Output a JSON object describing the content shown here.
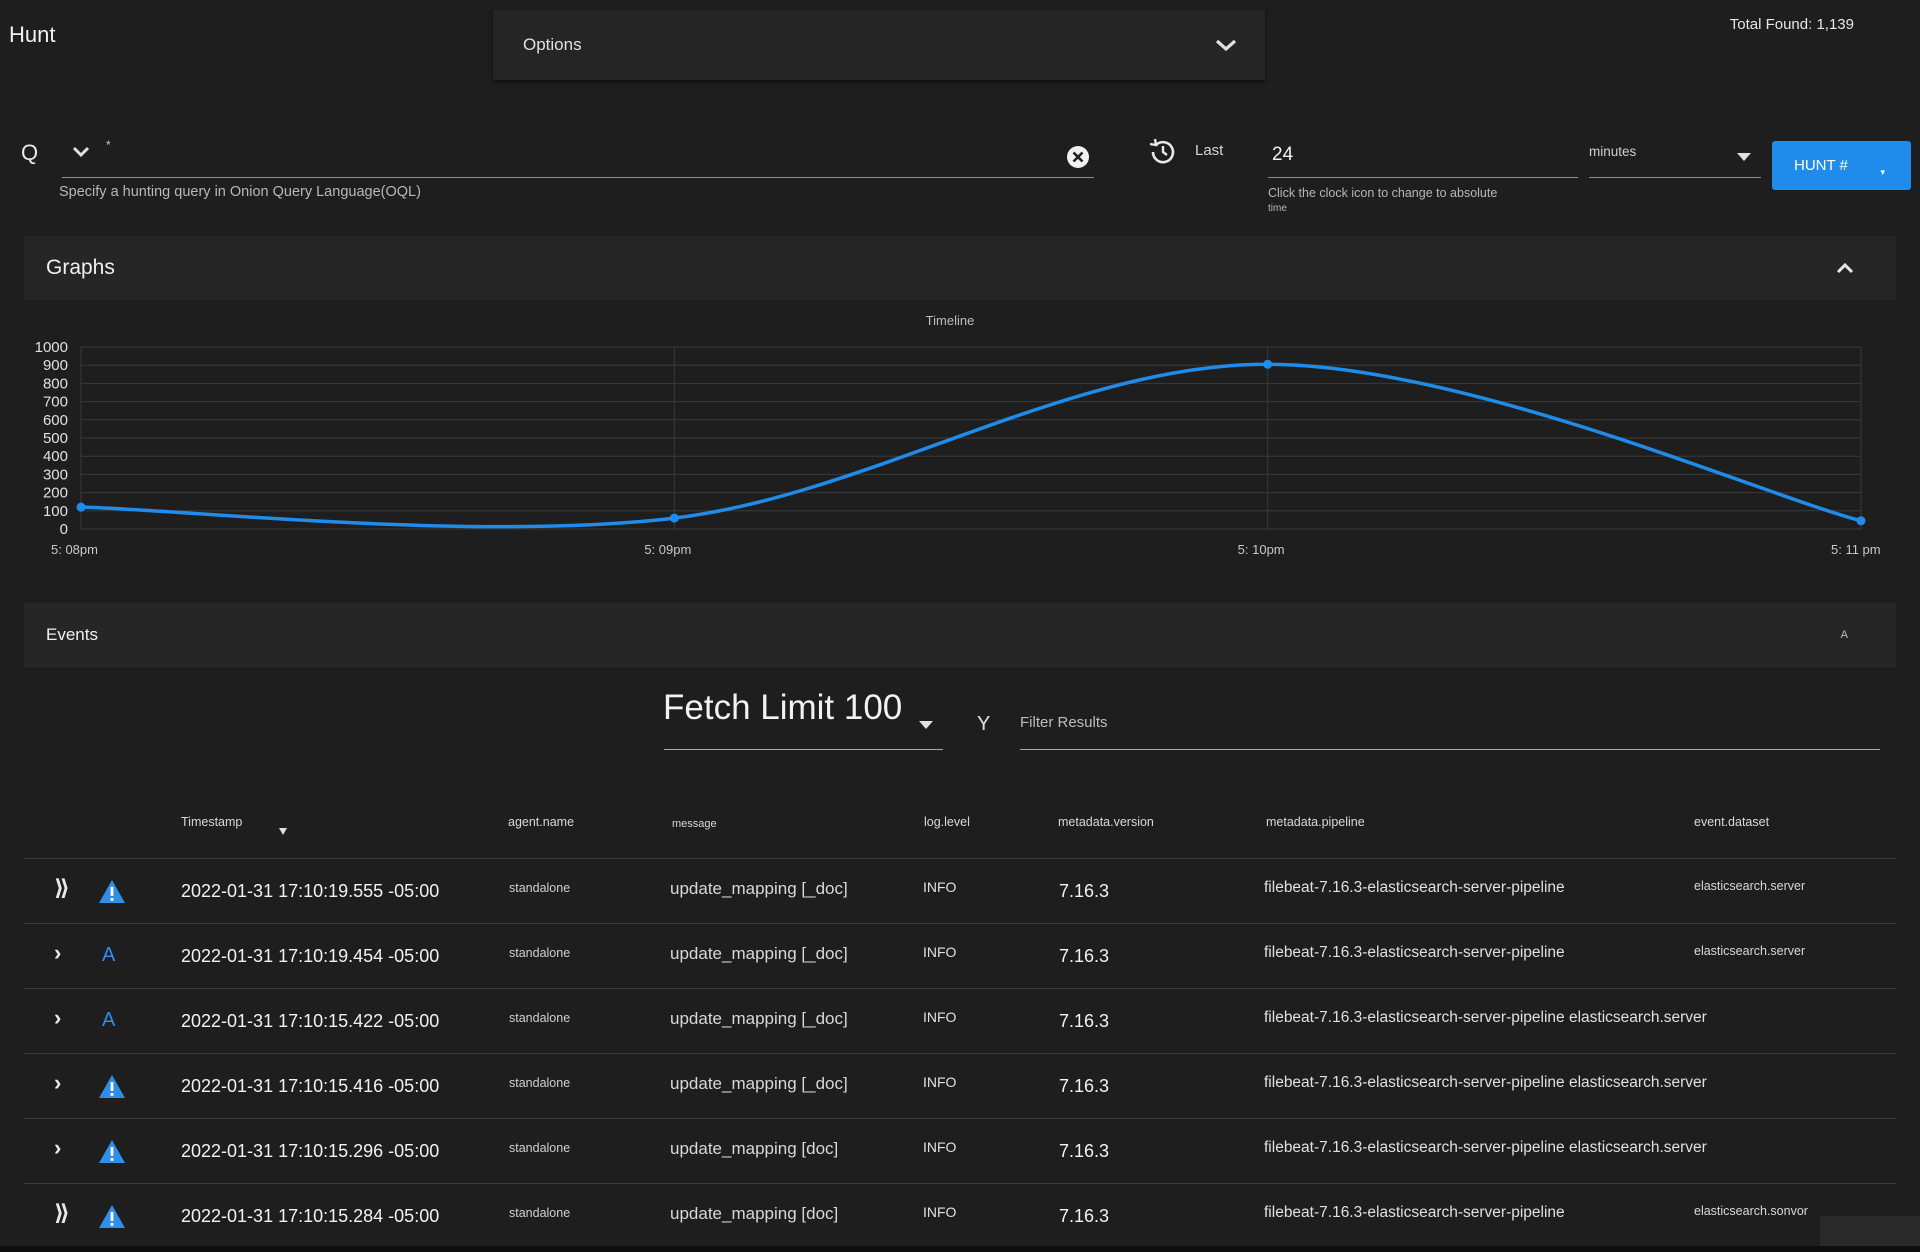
{
  "app": {
    "title": "Hunt",
    "total_found": "Total Found: 1,139"
  },
  "options": {
    "label": "Options"
  },
  "query": {
    "prefix": "Q",
    "value": "*",
    "hint": "Specify a hunting query in Onion Query Language(OQL)"
  },
  "time": {
    "last_label": "Last",
    "value": "24",
    "unit": "minutes",
    "hint": "Click the clock icon to change to absolute",
    "hint2": "time"
  },
  "hunt_button": {
    "label": "HUNT #",
    "caret": "▾"
  },
  "graphs": {
    "title": "Graphs",
    "chart_title": "Timeline"
  },
  "chart_data": {
    "type": "line",
    "title": "Timeline",
    "x": [
      "5: 08pm",
      "5: 09pm",
      "5: 10pm",
      "5: 11 pm"
    ],
    "series": [
      {
        "name": "Timeline",
        "values": [
          120,
          60,
          905,
          45
        ]
      }
    ],
    "yticks": [
      0,
      100,
      200,
      300,
      400,
      500,
      600,
      700,
      800,
      900,
      1000
    ],
    "ylim": [
      0,
      1000
    ],
    "xlabel": "",
    "ylabel": "",
    "grid": true,
    "color": "#1f8ceb"
  },
  "events": {
    "title": "Events",
    "caret": "A",
    "fetch_limit": "Fetch Limit 100",
    "filter_icon": "Y",
    "filter_placeholder": "Filter Results"
  },
  "table": {
    "columns": [
      "Timestamp",
      "agent.name",
      "message",
      "log.level",
      "metadata.version",
      "metadata.pipeline",
      "event.dataset"
    ],
    "rows": [
      {
        "expand": "⟫",
        "icon": "warning",
        "timestamp": "2022-01-31 17:10:19.555 -05:00",
        "agent": "standalone",
        "message": "update_mapping [_doc]",
        "level": "INFO",
        "version": "7.16.3",
        "pipeline": "filebeat-7.16.3-elasticsearch-server-pipeline",
        "dataset": "elasticsearch.server"
      },
      {
        "expand": "›",
        "icon": "letter",
        "letter": "A",
        "timestamp": "2022-01-31 17:10:19.454 -05:00",
        "agent": "standalone",
        "message": "update_mapping [_doc]",
        "level": "INFO",
        "version": "7.16.3",
        "pipeline": "filebeat-7.16.3-elasticsearch-server-pipeline",
        "dataset": "elasticsearch.server"
      },
      {
        "expand": "›",
        "icon": "letter",
        "letter": "A",
        "timestamp": "2022-01-31 17:10:15.422 -05:00",
        "agent": "standalone",
        "message": "update_mapping [_doc]",
        "level": "INFO",
        "version": "7.16.3",
        "pipeline": "filebeat-7.16.3-elasticsearch-server-pipeline elasticsearch.server",
        "dataset": ""
      },
      {
        "expand": "›",
        "icon": "warning",
        "timestamp": "2022-01-31 17:10:15.416 -05:00",
        "agent": "standalone",
        "message": "update_mapping [_doc]",
        "level": "INFO",
        "version": "7.16.3",
        "pipeline": "filebeat-7.16.3-elasticsearch-server-pipeline elasticsearch.server",
        "dataset": ""
      },
      {
        "expand": "›",
        "icon": "warning",
        "timestamp": "2022-01-31 17:10:15.296 -05:00",
        "agent": "standalone",
        "message": "update_mapping [doc]",
        "level": "INFO",
        "version": "7.16.3",
        "pipeline": "filebeat-7.16.3-elasticsearch-server-pipeline elasticsearch.server",
        "dataset": ""
      },
      {
        "expand": "⟫",
        "icon": "warning",
        "timestamp": "2022-01-31 17:10:15.284 -05:00",
        "agent": "standalone",
        "message": "update_mapping [doc]",
        "level": "INFO",
        "version": "7.16.3",
        "pipeline": "filebeat-7.16.3-elasticsearch-server-pipeline",
        "dataset": "elasticsearch.sonvor"
      }
    ]
  }
}
